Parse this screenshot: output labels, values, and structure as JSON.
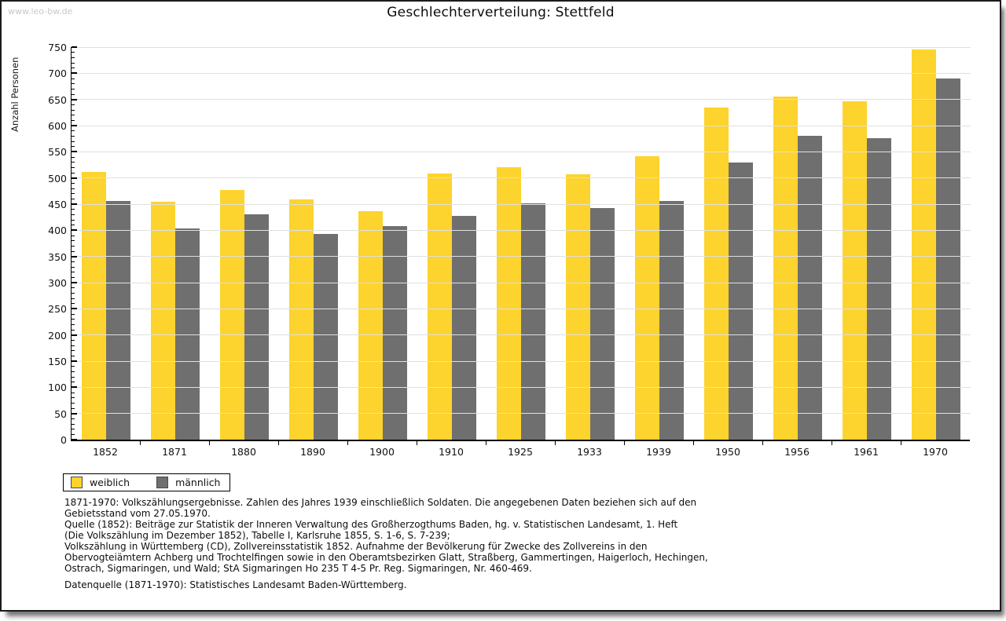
{
  "window": {
    "watermark": "www.leo-bw.de"
  },
  "title": "Geschlechterverteilung: Stettfeld",
  "chart_data": {
    "type": "bar",
    "title": "Geschlechterverteilung: Stettfeld",
    "xlabel": "",
    "ylabel": "Anzahl Personen",
    "ylim": [
      0,
      750
    ],
    "y_major_step": 50,
    "y_minor_step": 10,
    "grid": true,
    "legend_position": "bottom-left",
    "categories": [
      "1852",
      "1871",
      "1880",
      "1890",
      "1900",
      "1910",
      "1925",
      "1933",
      "1939",
      "1950",
      "1956",
      "1961",
      "1970"
    ],
    "series": [
      {
        "name": "weiblich",
        "color": "#FDD32D",
        "values": [
          511,
          455,
          477,
          459,
          437,
          508,
          520,
          507,
          541,
          635,
          656,
          647,
          745
        ]
      },
      {
        "name": "männlich",
        "color": "#6F6F6F",
        "values": [
          456,
          403,
          430,
          393,
          408,
          427,
          451,
          442,
          456,
          530,
          580,
          576,
          690
        ]
      }
    ]
  },
  "footer": {
    "lines": [
      "1871-1970: Volkszählungsergebnisse. Zahlen des Jahres 1939 einschließlich Soldaten. Die angegebenen Daten beziehen sich auf den",
      "Gebietsstand vom 27.05.1970.",
      "Quelle (1852): Beiträge zur Statistik der Inneren Verwaltung des Großherzogthums Baden, hg. v. Statistischen Landesamt, 1. Heft",
      "(Die Volkszählung im Dezember 1852), Tabelle I, Karlsruhe 1855, S. 1-6, S. 7-239;",
      "Volkszählung in Württemberg (CD), Zollvereinsstatistik 1852. Aufnahme der Bevölkerung für Zwecke des Zollvereins in den",
      "Obervogteiämtern Achberg und Trochtelfingen sowie in den Oberamtsbezirken Glatt, Straßberg, Gammertingen, Haigerloch, Hechingen,",
      "Ostrach, Sigmaringen, und Wald; StA Sigmaringen Ho 235 T 4-5 Pr. Reg. Sigmaringen, Nr. 460-469."
    ],
    "datasource": "Datenquelle (1871-1970): Statistisches Landesamt Baden-Württemberg."
  },
  "colors": {
    "weiblich": "#FDD32D",
    "maennlich": "#6F6F6F",
    "gridline": "#E0E0E0",
    "axis": "#000000",
    "watermark": "#C9C9C9",
    "background": "#FFFFFF",
    "frame_border": "#1B1B1B"
  }
}
